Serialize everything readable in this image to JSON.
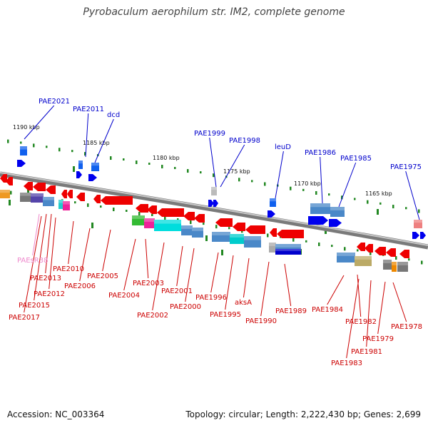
{
  "title": "Pyrobaculum aerophilum str. IM2, complete genome",
  "footer": {
    "accession": "Accession: NC_003364",
    "summary": "Topology: circular; Length: 2,222,430 bp; Genes: 2,699"
  },
  "colors": {
    "backbone": "#909090",
    "forward": "#0000ee",
    "reverse": "#ee0000",
    "blue_label": "#0000cc",
    "red_label": "#cc0000",
    "pink_label": "#ee88cc",
    "tick": "#228822"
  },
  "scale_labels": [
    "1190 kbp",
    "1185 kbp",
    "1180 kbp",
    "1175 kbp",
    "1170 kbp",
    "1165 kbp"
  ],
  "top_labels": [
    "PAE2021",
    "PAE2011",
    "dcd",
    "PAE1999",
    "PAE1998",
    "leuD",
    "PAE1986",
    "PAE1985",
    "PAE1975"
  ],
  "bottom_labels": [
    "PAEsR38",
    "PAE2010",
    "PAE2013",
    "PAE2012",
    "PAE2006",
    "PAE2015",
    "PAE2017",
    "PAE2005",
    "PAE2004",
    "PAE2003",
    "PAE2002",
    "PAE2001",
    "PAE2000",
    "PAE1996",
    "PAE1995",
    "aksA",
    "PAE1990",
    "PAE1989",
    "PAE1984",
    "PAE1982",
    "PAE1983",
    "PAE1981",
    "PAE1979",
    "PAE1978"
  ]
}
